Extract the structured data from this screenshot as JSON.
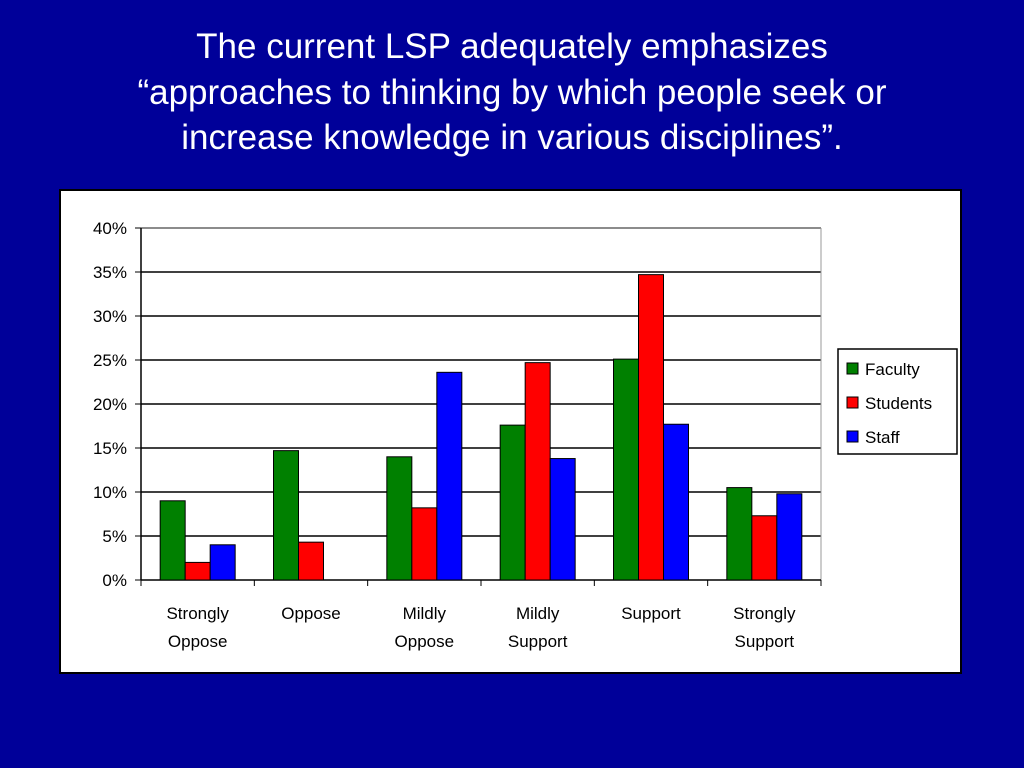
{
  "slide": {
    "title_lines": [
      "The current LSP adequately emphasizes",
      "“approaches to thinking by which people seek or",
      "increase knowledge in various disciplines”."
    ]
  },
  "chart_data": {
    "type": "bar",
    "categories": [
      [
        "Strongly",
        "Oppose"
      ],
      [
        "Oppose"
      ],
      [
        "Mildly",
        "Oppose"
      ],
      [
        "Mildly",
        "Support"
      ],
      [
        "Support"
      ],
      [
        "Strongly",
        "Support"
      ]
    ],
    "series": [
      {
        "name": "Faculty",
        "color": "#008000",
        "values": [
          9,
          14.7,
          14,
          17.6,
          25.1,
          10.5
        ]
      },
      {
        "name": "Students",
        "color": "#ff0000",
        "values": [
          2,
          4.3,
          8.2,
          24.7,
          34.7,
          7.3
        ]
      },
      {
        "name": "Staff",
        "color": "#0000ff",
        "values": [
          4,
          0,
          23.6,
          13.8,
          17.7,
          9.8
        ]
      }
    ],
    "ylim": [
      0,
      40
    ],
    "yticks": [
      0,
      5,
      10,
      15,
      20,
      25,
      30,
      35,
      40
    ],
    "ytick_labels": [
      "0%",
      "5%",
      "10%",
      "15%",
      "20%",
      "25%",
      "30%",
      "35%",
      "40%"
    ],
    "grid": true,
    "legend_position": "right",
    "title": "",
    "xlabel": "",
    "ylabel": ""
  }
}
